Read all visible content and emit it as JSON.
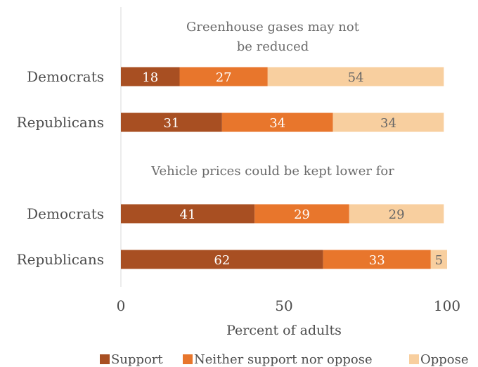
{
  "chart_data": {
    "type": "bar",
    "orientation": "horizontal",
    "stacked": true,
    "categories": [
      "Democrats",
      "Republicans",
      "Democrats",
      "Republicans"
    ],
    "groups": [
      {
        "annotation": [
          "Greenhouse gases may not",
          "be reduced"
        ],
        "rows": [
          {
            "label": "Democrats",
            "values": [
              18,
              27,
              54
            ]
          },
          {
            "label": "Republicans",
            "values": [
              31,
              34,
              34
            ]
          }
        ]
      },
      {
        "annotation": [
          "Vehicle prices could be kept lower for"
        ],
        "rows": [
          {
            "label": "Democrats",
            "values": [
              41,
              29,
              29
            ]
          },
          {
            "label": "Republicans",
            "values": [
              62,
              33,
              5
            ]
          }
        ]
      }
    ],
    "series": [
      {
        "name": "Support",
        "color": "#a84f22"
      },
      {
        "name": "Neither support nor oppose",
        "color": "#e8762c"
      },
      {
        "name": "Oppose",
        "color": "#f8cf9f"
      }
    ],
    "label_colors": [
      "#ffffff",
      "#ffffff",
      "#666666"
    ],
    "xlim": [
      0,
      100
    ],
    "xticks": [
      "0",
      "50",
      "100"
    ],
    "xlabel": "Percent of adults",
    "grid": false,
    "legend_position": "bottom"
  }
}
